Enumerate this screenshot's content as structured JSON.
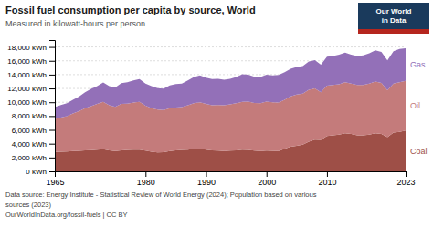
{
  "chart_data": {
    "type": "area",
    "title": "Fossil fuel consumption per capita by source, World",
    "subtitle": "Measured in kilowatt-hours per person.",
    "annotations": [
      "Data source: Energy Institute - Statistical Review of World Energy (2024); Population based on various",
      "sources (2023)",
      "OurWorldInData.org/fossil-fuels | CC BY",
      "Our World",
      "in Data"
    ],
    "stacked": true,
    "grid": true,
    "x": [
      1965,
      1966,
      1967,
      1968,
      1969,
      1970,
      1971,
      1972,
      1973,
      1974,
      1975,
      1976,
      1977,
      1978,
      1979,
      1980,
      1981,
      1982,
      1983,
      1984,
      1985,
      1986,
      1987,
      1988,
      1989,
      1990,
      1991,
      1992,
      1993,
      1994,
      1995,
      1996,
      1997,
      1998,
      1999,
      2000,
      2001,
      2002,
      2003,
      2004,
      2005,
      2006,
      2007,
      2008,
      2009,
      2010,
      2011,
      2012,
      2013,
      2014,
      2015,
      2016,
      2017,
      2018,
      2019,
      2020,
      2021,
      2022,
      2023
    ],
    "series": [
      {
        "name": "Coal",
        "color": "#9e4f47",
        "values": [
          2800,
          2850,
          2870,
          2920,
          2970,
          3050,
          3080,
          3150,
          3200,
          3050,
          2950,
          3050,
          3100,
          3150,
          3150,
          3000,
          2850,
          2750,
          2780,
          2950,
          3050,
          3100,
          3150,
          3250,
          3300,
          3150,
          3050,
          3000,
          2950,
          3000,
          3050,
          3150,
          3100,
          3000,
          2950,
          3000,
          2980,
          2950,
          3250,
          3550,
          3700,
          3850,
          4300,
          4600,
          4550,
          5100,
          5200,
          5300,
          5500,
          5400,
          5200,
          5200,
          5300,
          5500,
          5400,
          4950,
          5600,
          5700,
          5900
        ]
      },
      {
        "name": "Oil",
        "color": "#c47b7b",
        "values": [
          4800,
          4950,
          5100,
          5450,
          5750,
          6100,
          6350,
          6600,
          6850,
          6500,
          6400,
          6700,
          6700,
          6800,
          6900,
          6500,
          6300,
          6200,
          6100,
          6200,
          6200,
          6200,
          6400,
          6600,
          6700,
          6600,
          6500,
          6600,
          6600,
          6700,
          6800,
          6900,
          7000,
          6900,
          6900,
          7100,
          7000,
          7000,
          7100,
          7300,
          7400,
          7400,
          7500,
          7400,
          6900,
          7300,
          7300,
          7300,
          7400,
          7300,
          7300,
          7300,
          7400,
          7500,
          7400,
          6800,
          7100,
          7200,
          7200
        ]
      },
      {
        "name": "Gas",
        "color": "#9370b8",
        "values": [
          1700,
          1800,
          1900,
          2000,
          2100,
          2300,
          2500,
          2600,
          2800,
          2800,
          2800,
          3000,
          3100,
          3200,
          3300,
          3200,
          3200,
          3100,
          3100,
          3300,
          3400,
          3400,
          3600,
          3800,
          3900,
          3800,
          3800,
          3800,
          3700,
          3700,
          3800,
          4000,
          3900,
          3800,
          3800,
          3900,
          3900,
          4000,
          4000,
          4000,
          4000,
          4000,
          4100,
          4100,
          4000,
          4200,
          4200,
          4300,
          4300,
          4200,
          4200,
          4300,
          4400,
          4500,
          4500,
          4300,
          4700,
          4800,
          4700
        ]
      }
    ],
    "xlim": [
      1965,
      2023
    ],
    "xticks": [
      1965,
      1980,
      1990,
      2000,
      2010,
      2023
    ],
    "ylim": [
      0,
      19000
    ],
    "yticks": [
      {
        "value": 0,
        "label": "0 kWh"
      },
      {
        "value": 2000,
        "label": "2,000 kWh"
      },
      {
        "value": 4000,
        "label": "4,000 kWh"
      },
      {
        "value": 6000,
        "label": "6,000 kWh"
      },
      {
        "value": 8000,
        "label": "8,000 kWh"
      },
      {
        "value": 10000,
        "label": "10,000 kWh"
      },
      {
        "value": 12000,
        "label": "12,000 kWh"
      },
      {
        "value": 14000,
        "label": "14,000 kWh"
      },
      {
        "value": 16000,
        "label": "16,000 kWh"
      },
      {
        "value": 18000,
        "label": "18,000 kWh"
      }
    ]
  }
}
